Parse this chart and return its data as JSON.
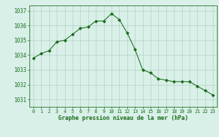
{
  "hours": [
    0,
    1,
    2,
    3,
    4,
    5,
    6,
    7,
    8,
    9,
    10,
    11,
    12,
    13,
    14,
    15,
    16,
    17,
    18,
    19,
    20,
    21,
    22,
    23
  ],
  "pressure": [
    1033.8,
    1034.1,
    1034.3,
    1034.9,
    1035.0,
    1035.4,
    1035.8,
    1035.9,
    1036.3,
    1036.3,
    1036.8,
    1036.4,
    1035.5,
    1034.4,
    1033.0,
    1032.8,
    1032.4,
    1032.3,
    1032.2,
    1032.2,
    1032.2,
    1031.9,
    1031.6,
    1031.3
  ],
  "line_color": "#1a6b1a",
  "marker_color": "#1a6b1a",
  "bg_color": "#d8f0e8",
  "grid_color": "#a8c8b8",
  "xlabel": "Graphe pression niveau de la mer (hPa)",
  "xlabel_color": "#1a6b1a",
  "tick_color": "#1a6b1a",
  "ylim_min": 1030.5,
  "ylim_max": 1037.35,
  "yticks": [
    1031,
    1032,
    1033,
    1034,
    1035,
    1036,
    1037
  ],
  "xticks": [
    0,
    1,
    2,
    3,
    4,
    5,
    6,
    7,
    8,
    9,
    10,
    11,
    12,
    13,
    14,
    15,
    16,
    17,
    18,
    19,
    20,
    21,
    22,
    23
  ]
}
